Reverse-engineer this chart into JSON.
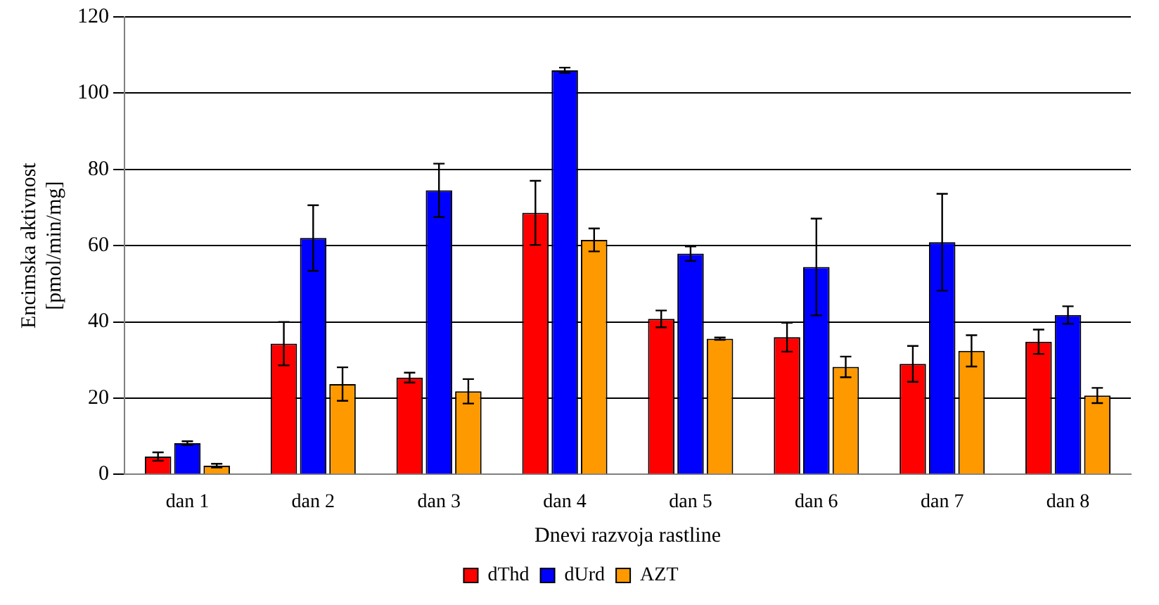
{
  "chart_data": {
    "type": "bar",
    "xlabel": "Dnevi razvoja rastline",
    "ylabel": "Encimska aktivnost\n[pmol/min/mg]",
    "categories": [
      "dan 1",
      "dan 2",
      "dan 3",
      "dan 4",
      "dan 5",
      "dan 6",
      "dan 7",
      "dan 8"
    ],
    "series": [
      {
        "name": "dThd",
        "color": "#ff0000",
        "values": [
          4.7,
          34.3,
          25.4,
          68.6,
          40.8,
          36.0,
          29.0,
          34.8
        ],
        "errors": [
          1.1,
          5.7,
          1.3,
          8.4,
          2.2,
          3.8,
          4.7,
          3.2
        ]
      },
      {
        "name": "dUrd",
        "color": "#0000ff",
        "values": [
          8.2,
          62.0,
          74.5,
          106,
          57.9,
          54.4,
          60.9,
          41.8
        ],
        "errors": [
          0.5,
          8.6,
          7,
          0.7,
          1.9,
          12.7,
          12.7,
          2.3
        ]
      },
      {
        "name": "AZT",
        "color": "#ff9900",
        "values": [
          2.3,
          23.7,
          21.8,
          61.5,
          35.6,
          28.2,
          32.4,
          20.7
        ],
        "errors": [
          0.5,
          4.4,
          3.2,
          3,
          0.3,
          2.7,
          4.1,
          2.0
        ]
      }
    ],
    "ylim": [
      0,
      120
    ],
    "yticks": [
      0,
      20,
      40,
      60,
      80,
      100,
      120
    ],
    "grid": "y",
    "legend": "bottom"
  }
}
